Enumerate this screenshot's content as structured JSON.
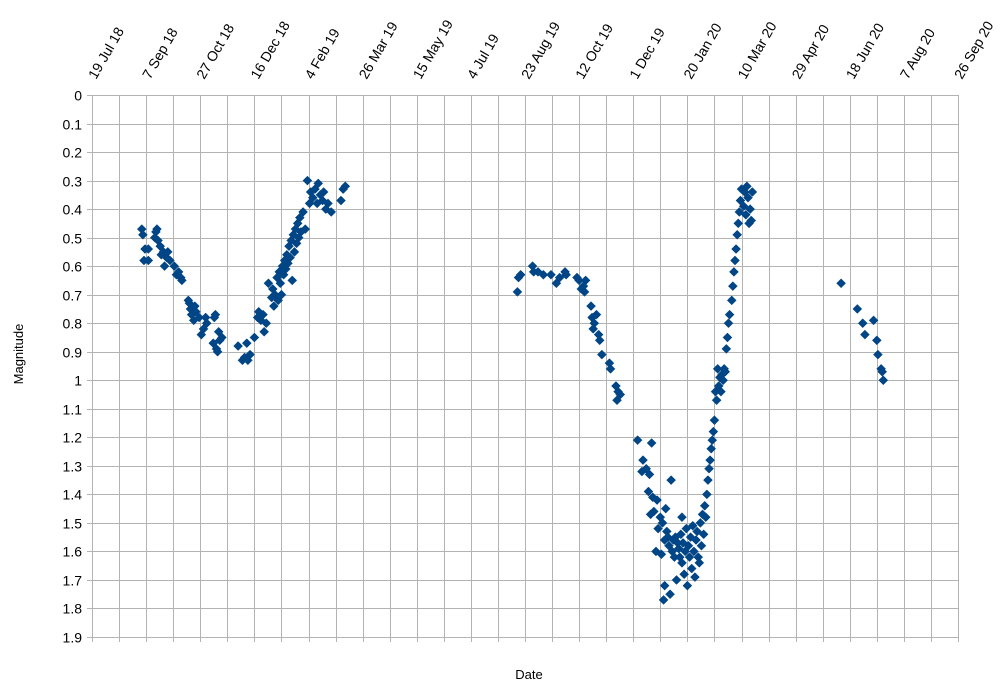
{
  "chart_data": {
    "type": "scatter",
    "title": "",
    "xlabel": "Date",
    "ylabel": "Magnitude",
    "x_scale": "date",
    "xlim": [
      "2018-07-19",
      "2020-09-26"
    ],
    "x_tick_step_days": 50,
    "x_tick_labels": [
      "19 Jul 18",
      "7 Sep 18",
      "27 Oct 18",
      "16 Dec 18",
      "4 Feb 19",
      "26 Mar 19",
      "15 May 19",
      "4 Jul 19",
      "23 Aug 19",
      "12 Oct 19",
      "1 Dec 19",
      "20 Jan 20",
      "10 Mar 20",
      "29 Apr 20",
      "18 Jun 20",
      "7 Aug 20",
      "26 Sep 20"
    ],
    "ylim": [
      0,
      1.9
    ],
    "y_reversed": true,
    "y_ticks": [
      "0",
      "0.1",
      "0.2",
      "0.3",
      "0.4",
      "0.5",
      "0.6",
      "0.7",
      "0.8",
      "0.9",
      "1",
      "1.1",
      "1.2",
      "1.3",
      "1.4",
      "1.5",
      "1.6",
      "1.7",
      "1.8",
      "1.9"
    ],
    "grid": true,
    "legend": "none",
    "marker": "diamond",
    "marker_color": "#004586",
    "series": [
      {
        "points": [
          [
            "2018-09-03",
            0.47
          ],
          [
            "2018-09-04",
            0.49
          ],
          [
            "2018-09-05",
            0.58
          ],
          [
            "2018-09-06",
            0.54
          ],
          [
            "2018-09-09",
            0.58
          ],
          [
            "2018-09-09",
            0.54
          ],
          [
            "2018-09-15",
            0.5
          ],
          [
            "2018-09-16",
            0.48
          ],
          [
            "2018-09-17",
            0.47
          ],
          [
            "2018-09-18",
            0.51
          ],
          [
            "2018-09-20",
            0.53
          ],
          [
            "2018-09-21",
            0.56
          ],
          [
            "2018-09-23",
            0.55
          ],
          [
            "2018-09-24",
            0.6
          ],
          [
            "2018-09-26",
            0.57
          ],
          [
            "2018-09-27",
            0.55
          ],
          [
            "2018-09-29",
            0.58
          ],
          [
            "2018-10-03",
            0.6
          ],
          [
            "2018-10-05",
            0.63
          ],
          [
            "2018-10-07",
            0.62
          ],
          [
            "2018-10-09",
            0.64
          ],
          [
            "2018-10-10",
            0.65
          ],
          [
            "2018-10-16",
            0.72
          ],
          [
            "2018-10-17",
            0.73
          ],
          [
            "2018-10-18",
            0.75
          ],
          [
            "2018-10-19",
            0.77
          ],
          [
            "2018-10-21",
            0.79
          ],
          [
            "2018-10-22",
            0.74
          ],
          [
            "2018-10-23",
            0.76
          ],
          [
            "2018-10-26",
            0.78
          ],
          [
            "2018-10-28",
            0.84
          ],
          [
            "2018-10-30",
            0.82
          ],
          [
            "2018-11-01",
            0.78
          ],
          [
            "2018-11-02",
            0.8
          ],
          [
            "2018-11-08",
            0.87
          ],
          [
            "2018-11-09",
            0.78
          ],
          [
            "2018-11-10",
            0.77
          ],
          [
            "2018-11-11",
            0.89
          ],
          [
            "2018-11-12",
            0.9
          ],
          [
            "2018-11-13",
            0.83
          ],
          [
            "2018-11-14",
            0.86
          ],
          [
            "2018-11-16",
            0.85
          ],
          [
            "2018-12-01",
            0.88
          ],
          [
            "2018-12-05",
            0.93
          ],
          [
            "2018-12-07",
            0.92
          ],
          [
            "2018-12-09",
            0.87
          ],
          [
            "2018-12-10",
            0.93
          ],
          [
            "2018-12-12",
            0.91
          ],
          [
            "2018-12-16",
            0.85
          ],
          [
            "2018-12-19",
            0.78
          ],
          [
            "2018-12-20",
            0.76
          ],
          [
            "2018-12-22",
            0.79
          ],
          [
            "2018-12-24",
            0.77
          ],
          [
            "2018-12-25",
            0.83
          ],
          [
            "2018-12-27",
            0.8
          ],
          [
            "2018-12-29",
            0.66
          ],
          [
            "2019-01-01",
            0.71
          ],
          [
            "2019-01-02",
            0.68
          ],
          [
            "2019-01-03",
            0.74
          ],
          [
            "2019-01-04",
            0.7
          ],
          [
            "2019-01-06",
            0.64
          ],
          [
            "2019-01-07",
            0.72
          ],
          [
            "2019-01-08",
            0.62
          ],
          [
            "2019-01-09",
            0.66
          ],
          [
            "2019-01-10",
            0.7
          ],
          [
            "2019-01-11",
            0.6
          ],
          [
            "2019-01-12",
            0.63
          ],
          [
            "2019-01-13",
            0.58
          ],
          [
            "2019-01-14",
            0.61
          ],
          [
            "2019-01-15",
            0.56
          ],
          [
            "2019-01-16",
            0.59
          ],
          [
            "2019-01-17",
            0.53
          ],
          [
            "2019-01-18",
            0.57
          ],
          [
            "2019-01-19",
            0.51
          ],
          [
            "2019-01-20",
            0.65
          ],
          [
            "2019-01-21",
            0.49
          ],
          [
            "2019-01-22",
            0.55
          ],
          [
            "2019-01-23",
            0.47
          ],
          [
            "2019-01-24",
            0.52
          ],
          [
            "2019-01-25",
            0.45
          ],
          [
            "2019-01-26",
            0.5
          ],
          [
            "2019-01-27",
            0.43
          ],
          [
            "2019-01-28",
            0.48
          ],
          [
            "2019-01-30",
            0.41
          ],
          [
            "2019-02-01",
            0.47
          ],
          [
            "2019-02-03",
            0.3
          ],
          [
            "2019-02-05",
            0.38
          ],
          [
            "2019-02-06",
            0.34
          ],
          [
            "2019-02-08",
            0.36
          ],
          [
            "2019-02-10",
            0.33
          ],
          [
            "2019-02-12",
            0.38
          ],
          [
            "2019-02-13",
            0.31
          ],
          [
            "2019-02-15",
            0.35
          ],
          [
            "2019-02-17",
            0.37
          ],
          [
            "2019-02-18",
            0.34
          ],
          [
            "2019-02-20",
            0.4
          ],
          [
            "2019-02-22",
            0.38
          ],
          [
            "2019-02-25",
            0.41
          ],
          [
            "2019-03-06",
            0.37
          ],
          [
            "2019-03-08",
            0.33
          ],
          [
            "2019-03-10",
            0.32
          ],
          [
            "2019-08-16",
            0.69
          ],
          [
            "2019-08-17",
            0.64
          ],
          [
            "2019-08-19",
            0.63
          ],
          [
            "2019-08-30",
            0.6
          ],
          [
            "2019-08-31",
            0.62
          ],
          [
            "2019-09-04",
            0.62
          ],
          [
            "2019-09-09",
            0.63
          ],
          [
            "2019-09-16",
            0.63
          ],
          [
            "2019-09-21",
            0.66
          ],
          [
            "2019-09-24",
            0.64
          ],
          [
            "2019-09-29",
            0.62
          ],
          [
            "2019-09-30",
            0.63
          ],
          [
            "2019-10-10",
            0.64
          ],
          [
            "2019-10-12",
            0.65
          ],
          [
            "2019-10-14",
            0.68
          ],
          [
            "2019-10-16",
            0.67
          ],
          [
            "2019-10-17",
            0.69
          ],
          [
            "2019-10-18",
            0.65
          ],
          [
            "2019-10-23",
            0.74
          ],
          [
            "2019-10-24",
            0.78
          ],
          [
            "2019-10-25",
            0.82
          ],
          [
            "2019-10-26",
            0.8
          ],
          [
            "2019-10-28",
            0.77
          ],
          [
            "2019-10-30",
            0.84
          ],
          [
            "2019-10-31",
            0.86
          ],
          [
            "2019-11-02",
            0.91
          ],
          [
            "2019-11-09",
            0.94
          ],
          [
            "2019-11-10",
            0.96
          ],
          [
            "2019-11-15",
            1.02
          ],
          [
            "2019-11-16",
            1.07
          ],
          [
            "2019-11-17",
            1.04
          ],
          [
            "2019-11-19",
            1.05
          ],
          [
            "2019-12-05",
            1.21
          ],
          [
            "2019-12-09",
            1.32
          ],
          [
            "2019-12-10",
            1.28
          ],
          [
            "2019-12-13",
            1.31
          ],
          [
            "2019-12-15",
            1.39
          ],
          [
            "2019-12-16",
            1.33
          ],
          [
            "2019-12-17",
            1.47
          ],
          [
            "2019-12-18",
            1.22
          ],
          [
            "2019-12-19",
            1.41
          ],
          [
            "2019-12-20",
            1.46
          ],
          [
            "2019-12-22",
            1.6
          ],
          [
            "2019-12-23",
            1.42
          ],
          [
            "2019-12-24",
            1.52
          ],
          [
            "2019-12-26",
            1.48
          ],
          [
            "2019-12-27",
            1.61
          ],
          [
            "2019-12-28",
            1.5
          ],
          [
            "2019-12-29",
            1.77
          ],
          [
            "2019-12-30",
            1.56
          ],
          [
            "2019-12-30",
            1.72
          ],
          [
            "2019-12-31",
            1.45
          ],
          [
            "2020-01-01",
            1.53
          ],
          [
            "2020-01-02",
            1.55
          ],
          [
            "2020-01-03",
            1.58
          ],
          [
            "2020-01-04",
            1.75
          ],
          [
            "2020-01-05",
            1.35
          ],
          [
            "2020-01-06",
            1.6
          ],
          [
            "2020-01-07",
            1.56
          ],
          [
            "2020-01-08",
            1.62
          ],
          [
            "2020-01-09",
            1.55
          ],
          [
            "2020-01-10",
            1.7
          ],
          [
            "2020-01-11",
            1.57
          ],
          [
            "2020-01-12",
            1.59
          ],
          [
            "2020-01-13",
            1.62
          ],
          [
            "2020-01-14",
            1.54
          ],
          [
            "2020-01-15",
            1.48
          ],
          [
            "2020-01-15",
            1.64
          ],
          [
            "2020-01-16",
            1.57
          ],
          [
            "2020-01-17",
            1.68
          ],
          [
            "2020-01-18",
            1.6
          ],
          [
            "2020-01-19",
            1.52
          ],
          [
            "2020-01-20",
            1.72
          ],
          [
            "2020-01-21",
            1.58
          ],
          [
            "2020-01-22",
            1.62
          ],
          [
            "2020-01-23",
            1.55
          ],
          [
            "2020-01-24",
            1.66
          ],
          [
            "2020-01-25",
            1.51
          ],
          [
            "2020-01-26",
            1.6
          ],
          [
            "2020-01-27",
            1.69
          ],
          [
            "2020-01-28",
            1.56
          ],
          [
            "2020-01-29",
            1.53
          ],
          [
            "2020-01-30",
            1.62
          ],
          [
            "2020-01-31",
            1.64
          ],
          [
            "2020-02-01",
            1.5
          ],
          [
            "2020-02-02",
            1.58
          ],
          [
            "2020-02-03",
            1.47
          ],
          [
            "2020-02-04",
            1.54
          ],
          [
            "2020-02-05",
            1.44
          ],
          [
            "2020-02-06",
            1.48
          ],
          [
            "2020-02-07",
            1.4
          ],
          [
            "2020-02-08",
            1.35
          ],
          [
            "2020-02-09",
            1.31
          ],
          [
            "2020-02-10",
            1.28
          ],
          [
            "2020-02-11",
            1.24
          ],
          [
            "2020-02-12",
            1.21
          ],
          [
            "2020-02-13",
            1.18
          ],
          [
            "2020-02-14",
            1.14
          ],
          [
            "2020-02-15",
            1.04
          ],
          [
            "2020-02-16",
            1.07
          ],
          [
            "2020-02-17",
            0.96
          ],
          [
            "2020-02-18",
            1.02
          ],
          [
            "2020-02-19",
            0.99
          ],
          [
            "2020-02-20",
            1.04
          ],
          [
            "2020-02-21",
            0.98
          ],
          [
            "2020-02-22",
            1.0
          ],
          [
            "2020-02-23",
            0.96
          ],
          [
            "2020-02-24",
            0.97
          ],
          [
            "2020-02-25",
            0.89
          ],
          [
            "2020-02-26",
            0.85
          ],
          [
            "2020-02-27",
            0.8
          ],
          [
            "2020-02-28",
            0.77
          ],
          [
            "2020-03-01",
            0.72
          ],
          [
            "2020-03-02",
            0.67
          ],
          [
            "2020-03-03",
            0.62
          ],
          [
            "2020-03-04",
            0.58
          ],
          [
            "2020-03-05",
            0.54
          ],
          [
            "2020-03-06",
            0.49
          ],
          [
            "2020-03-07",
            0.45
          ],
          [
            "2020-03-08",
            0.41
          ],
          [
            "2020-03-09",
            0.37
          ],
          [
            "2020-03-10",
            0.33
          ],
          [
            "2020-03-12",
            0.39
          ],
          [
            "2020-03-13",
            0.34
          ],
          [
            "2020-03-14",
            0.42
          ],
          [
            "2020-03-15",
            0.32
          ],
          [
            "2020-03-16",
            0.36
          ],
          [
            "2020-03-17",
            0.45
          ],
          [
            "2020-03-18",
            0.4
          ],
          [
            "2020-03-19",
            0.44
          ],
          [
            "2020-03-20",
            0.34
          ],
          [
            "2020-06-10",
            0.66
          ],
          [
            "2020-06-25",
            0.75
          ],
          [
            "2020-06-30",
            0.8
          ],
          [
            "2020-07-02",
            0.84
          ],
          [
            "2020-07-10",
            0.79
          ],
          [
            "2020-07-13",
            0.86
          ],
          [
            "2020-07-14",
            0.91
          ],
          [
            "2020-07-17",
            0.96
          ],
          [
            "2020-07-18",
            0.97
          ],
          [
            "2020-07-19",
            1.0
          ]
        ]
      }
    ]
  }
}
